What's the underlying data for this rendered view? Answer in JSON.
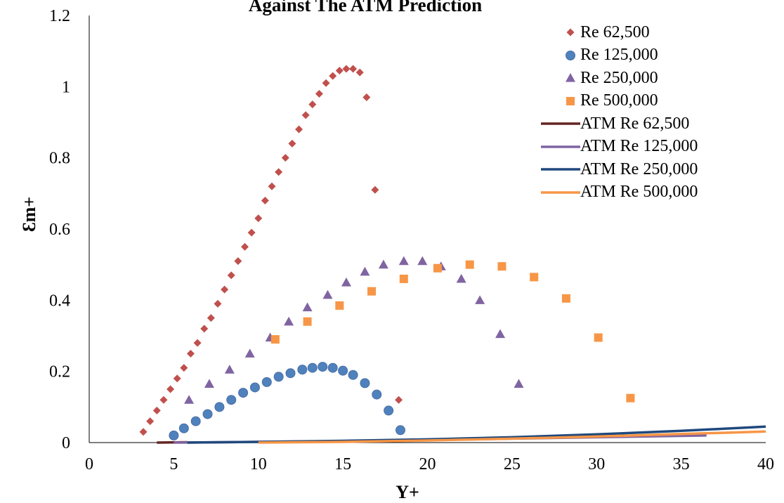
{
  "chart_data": {
    "type": "scatter",
    "title": "Against The ATM Prediction",
    "xlabel": "Y+",
    "ylabel": "Ɛm+",
    "xlim": [
      0,
      40
    ],
    "ylim": [
      0,
      1.2
    ],
    "x_ticks": [
      "0",
      "5",
      "10",
      "15",
      "20",
      "25",
      "30",
      "35",
      "40"
    ],
    "y_ticks": [
      "0",
      "0.2",
      "0.4",
      "0.6",
      "0.8",
      "1",
      "1.2"
    ],
    "grid": false,
    "legend_position": "top-right",
    "series": [
      {
        "name": "Re 62,500",
        "kind": "markers",
        "marker": "diamond",
        "color": "#c0504d",
        "points": [
          [
            3.2,
            0.03
          ],
          [
            3.6,
            0.06
          ],
          [
            4.0,
            0.09
          ],
          [
            4.4,
            0.12
          ],
          [
            4.8,
            0.15
          ],
          [
            5.2,
            0.18
          ],
          [
            5.6,
            0.21
          ],
          [
            6.0,
            0.25
          ],
          [
            6.4,
            0.28
          ],
          [
            6.8,
            0.32
          ],
          [
            7.2,
            0.35
          ],
          [
            7.6,
            0.39
          ],
          [
            8.0,
            0.43
          ],
          [
            8.4,
            0.47
          ],
          [
            8.8,
            0.51
          ],
          [
            9.2,
            0.55
          ],
          [
            9.6,
            0.59
          ],
          [
            10.0,
            0.63
          ],
          [
            10.4,
            0.68
          ],
          [
            10.8,
            0.72
          ],
          [
            11.2,
            0.76
          ],
          [
            11.6,
            0.8
          ],
          [
            12.0,
            0.84
          ],
          [
            12.4,
            0.88
          ],
          [
            12.8,
            0.92
          ],
          [
            13.2,
            0.95
          ],
          [
            13.6,
            0.98
          ],
          [
            14.0,
            1.01
          ],
          [
            14.4,
            1.03
          ],
          [
            14.8,
            1.045
          ],
          [
            15.2,
            1.05
          ],
          [
            15.6,
            1.05
          ],
          [
            16.0,
            1.04
          ],
          [
            16.4,
            0.97
          ],
          [
            16.9,
            0.71
          ],
          [
            18.3,
            0.12
          ]
        ]
      },
      {
        "name": "Re 125,000",
        "kind": "markers",
        "marker": "circle",
        "color": "#4f81bd",
        "points": [
          [
            5.0,
            0.02
          ],
          [
            5.6,
            0.04
          ],
          [
            6.3,
            0.06
          ],
          [
            7.0,
            0.08
          ],
          [
            7.7,
            0.1
          ],
          [
            8.4,
            0.12
          ],
          [
            9.1,
            0.14
          ],
          [
            9.8,
            0.155
          ],
          [
            10.5,
            0.17
          ],
          [
            11.2,
            0.185
          ],
          [
            11.9,
            0.195
          ],
          [
            12.6,
            0.205
          ],
          [
            13.2,
            0.21
          ],
          [
            13.8,
            0.213
          ],
          [
            14.4,
            0.21
          ],
          [
            15.0,
            0.202
          ],
          [
            15.6,
            0.19
          ],
          [
            16.3,
            0.167
          ],
          [
            17.0,
            0.135
          ],
          [
            17.7,
            0.09
          ],
          [
            18.4,
            0.035
          ]
        ]
      },
      {
        "name": "Re 250,000",
        "kind": "markers",
        "marker": "triangle",
        "color": "#8064a2",
        "points": [
          [
            5.9,
            0.12
          ],
          [
            7.1,
            0.165
          ],
          [
            8.3,
            0.205
          ],
          [
            9.5,
            0.25
          ],
          [
            10.7,
            0.295
          ],
          [
            11.8,
            0.34
          ],
          [
            12.9,
            0.38
          ],
          [
            14.1,
            0.415
          ],
          [
            15.2,
            0.45
          ],
          [
            16.3,
            0.48
          ],
          [
            17.4,
            0.5
          ],
          [
            18.6,
            0.51
          ],
          [
            19.7,
            0.51
          ],
          [
            20.8,
            0.495
          ],
          [
            22.0,
            0.46
          ],
          [
            23.1,
            0.4
          ],
          [
            24.3,
            0.305
          ],
          [
            25.4,
            0.165
          ]
        ]
      },
      {
        "name": "Re 500,000",
        "kind": "markers",
        "marker": "square",
        "color": "#f79646",
        "points": [
          [
            11.0,
            0.29
          ],
          [
            12.9,
            0.34
          ],
          [
            14.8,
            0.385
          ],
          [
            16.7,
            0.425
          ],
          [
            18.6,
            0.46
          ],
          [
            20.6,
            0.49
          ],
          [
            22.5,
            0.5
          ],
          [
            24.4,
            0.495
          ],
          [
            26.3,
            0.465
          ],
          [
            28.2,
            0.405
          ],
          [
            30.1,
            0.295
          ],
          [
            32.0,
            0.125
          ]
        ]
      },
      {
        "name": "ATM Re 62,500",
        "kind": "line",
        "color": "#632523",
        "points": [
          [
            4.0,
            0.0
          ],
          [
            5.8,
            0.001
          ]
        ]
      },
      {
        "name": "ATM Re 125,000",
        "kind": "line",
        "color": "#8064a2",
        "points": [
          [
            5.0,
            0.0
          ],
          [
            10,
            0.002
          ],
          [
            15,
            0.004
          ],
          [
            20,
            0.007
          ],
          [
            25,
            0.011
          ],
          [
            30,
            0.015
          ],
          [
            36.5,
            0.02
          ]
        ]
      },
      {
        "name": "ATM Re 250,000",
        "kind": "line",
        "color": "#1f497d",
        "points": [
          [
            5.8,
            0.0
          ],
          [
            10,
            0.002
          ],
          [
            15,
            0.005
          ],
          [
            20,
            0.009
          ],
          [
            25,
            0.015
          ],
          [
            30,
            0.023
          ],
          [
            35,
            0.033
          ],
          [
            40,
            0.045
          ]
        ]
      },
      {
        "name": "ATM Re 500,000",
        "kind": "line",
        "color": "#f79646",
        "points": [
          [
            10,
            0.0
          ],
          [
            15,
            0.002
          ],
          [
            20,
            0.006
          ],
          [
            25,
            0.011
          ],
          [
            30,
            0.017
          ],
          [
            35,
            0.024
          ],
          [
            40,
            0.031
          ]
        ]
      }
    ]
  }
}
